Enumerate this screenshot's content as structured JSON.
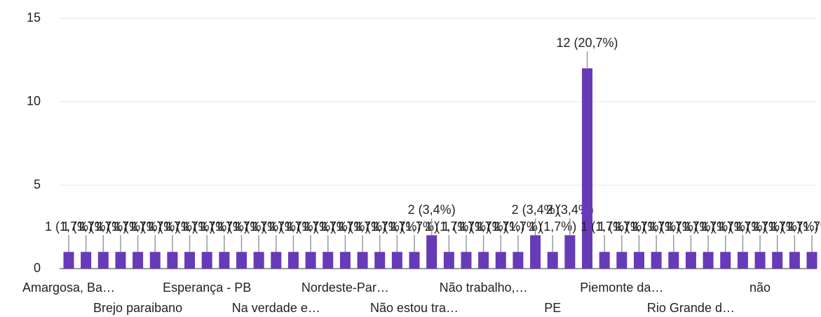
{
  "chart_data": {
    "type": "bar",
    "categories": [
      "Amargosa, Ba…",
      null,
      null,
      null,
      "Brejo paraibano",
      null,
      null,
      null,
      "Esperança - PB",
      null,
      null,
      null,
      "Na verdade e…",
      null,
      null,
      null,
      "Nordeste-Par…",
      null,
      null,
      null,
      "Não estou tra…",
      null,
      null,
      null,
      "Não trabalho,…",
      null,
      null,
      null,
      "PE",
      null,
      null,
      null,
      "Piemonte da…",
      null,
      null,
      null,
      "Rio Grande d…",
      null,
      null,
      null,
      "não",
      null,
      null,
      null
    ],
    "values": [
      1,
      1,
      1,
      1,
      1,
      1,
      1,
      1,
      1,
      1,
      1,
      1,
      1,
      1,
      1,
      1,
      1,
      1,
      1,
      1,
      1,
      2,
      1,
      1,
      1,
      1,
      1,
      2,
      1,
      2,
      12,
      1,
      1,
      1,
      1,
      1,
      1,
      1,
      1,
      1,
      1,
      1,
      1,
      1
    ],
    "value_labels": [
      "1 (1,7%)",
      "1 (1,7%)",
      "1 (1,7%)",
      "1 (1,7%)",
      "1 (1,7%)",
      "1 (1,7%)",
      "1 (1,7%)",
      "1 (1,7%)",
      "1 (1,7%)",
      "1 (1,7%)",
      "1 (1,7%)",
      "1 (1,7%)",
      "1 (1,7%)",
      "1 (1,7%)",
      "1 (1,7%)",
      "1 (1,7%)",
      "1 (1,7%)",
      "1 (1,7%)",
      "1 (1,7%)",
      "1 (1,7%)",
      "1 (1,7%)",
      "2 (3,4%)",
      "1 (1,7%)",
      "1 (1,7%)",
      "1 (1,7%)",
      "1 (1,7%)",
      "1 (1,7%)",
      "2 (3,4%)",
      "1 (1,7%)",
      "2 (3,4%)",
      "12 (20,7%)",
      "1 (1,7%)",
      "1 (1,7%)",
      "1 (1,7%)",
      "1 (1,7%)",
      "1 (1,7%)",
      "1 (1,7%)",
      "1 (1,7%)",
      "1 (1,7%)",
      "1 (1,7%)",
      "1 (1,7%)",
      "1 (1,7%)",
      "1 (1,7%)",
      "1 (1,7%)"
    ],
    "color": "#673ab7",
    "ylim": [
      0,
      15
    ],
    "yticks": [
      0,
      5,
      10,
      15
    ],
    "grid": true
  }
}
